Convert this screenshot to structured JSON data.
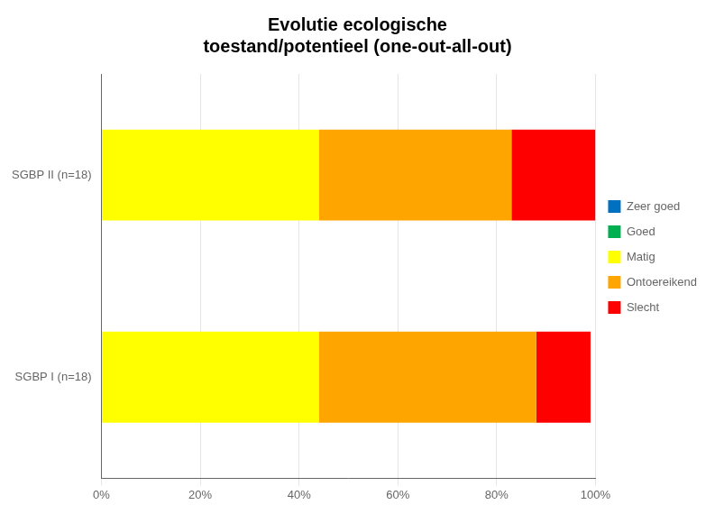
{
  "chart_data": {
    "type": "bar",
    "orientation": "horizontal",
    "stacked": true,
    "title": "Evolutie ecologische\ntoestand/potentieel (one-out-all-out)",
    "categories": [
      "SGBP I (n=18)",
      "SGBP II (n=18)"
    ],
    "series": [
      {
        "name": "Zeer goed",
        "color": "#0070C0",
        "values": [
          0,
          0
        ]
      },
      {
        "name": "Goed",
        "color": "#00B050",
        "values": [
          0,
          0
        ]
      },
      {
        "name": "Matig",
        "color": "#FFFF00",
        "values": [
          44,
          44
        ]
      },
      {
        "name": "Ontoereikend",
        "color": "#FFA500",
        "values": [
          44,
          39
        ]
      },
      {
        "name": "Slecht",
        "color": "#FF0000",
        "values": [
          11,
          17
        ]
      }
    ],
    "xlim": [
      0,
      100
    ],
    "xticks": [
      {
        "value": 0,
        "label": "0%"
      },
      {
        "value": 20,
        "label": "20%"
      },
      {
        "value": 40,
        "label": "40%"
      },
      {
        "value": 60,
        "label": "60%"
      },
      {
        "value": 80,
        "label": "80%"
      },
      {
        "value": 100,
        "label": "100%"
      }
    ],
    "grid": true,
    "legend": "right"
  }
}
